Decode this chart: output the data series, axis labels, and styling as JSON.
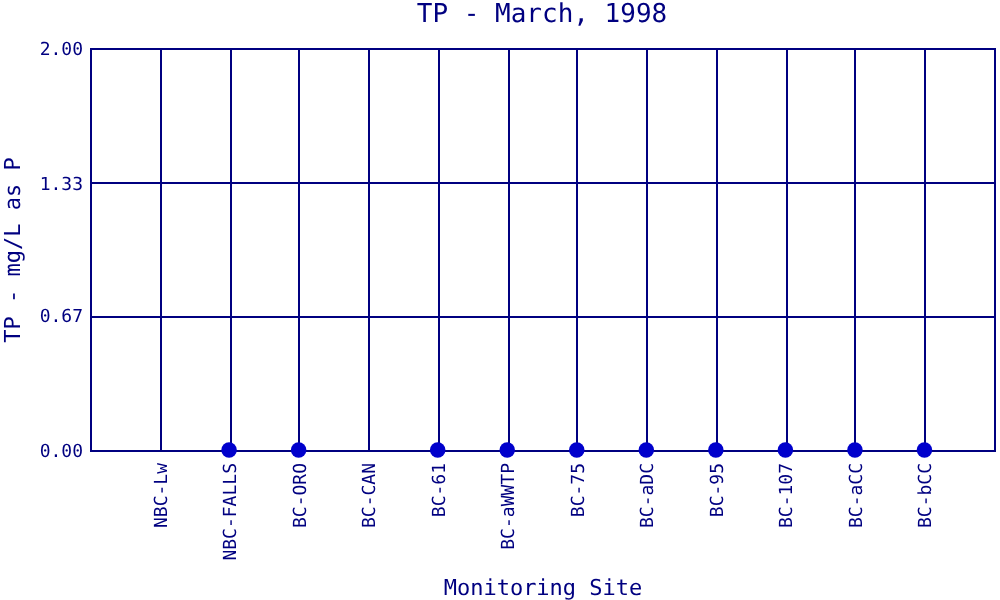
{
  "chart_data": {
    "type": "scatter",
    "title": "TP - March, 1998",
    "xlabel": "Monitoring Site",
    "ylabel": "TP - mg/L as P",
    "categories": [
      "NBC-Lw",
      "NBC-FALLS",
      "BC-ORO",
      "BC-CAN",
      "BC-61",
      "BC-aWWTP",
      "BC-75",
      "BC-aDC",
      "BC-95",
      "BC-107",
      "BC-aCC",
      "BC-bCC"
    ],
    "series": [
      {
        "color": "#0000cc",
        "values": [
          null,
          0,
          0,
          null,
          0,
          0,
          0,
          0,
          0,
          0,
          0,
          0
        ]
      }
    ],
    "ylim": [
      0,
      2
    ],
    "yticks": [
      {
        "value": 0,
        "label": "0.00"
      },
      0.67,
      1.33,
      {
        "value": 2,
        "label": "2.00"
      }
    ],
    "grid": true,
    "marker": "circle"
  }
}
